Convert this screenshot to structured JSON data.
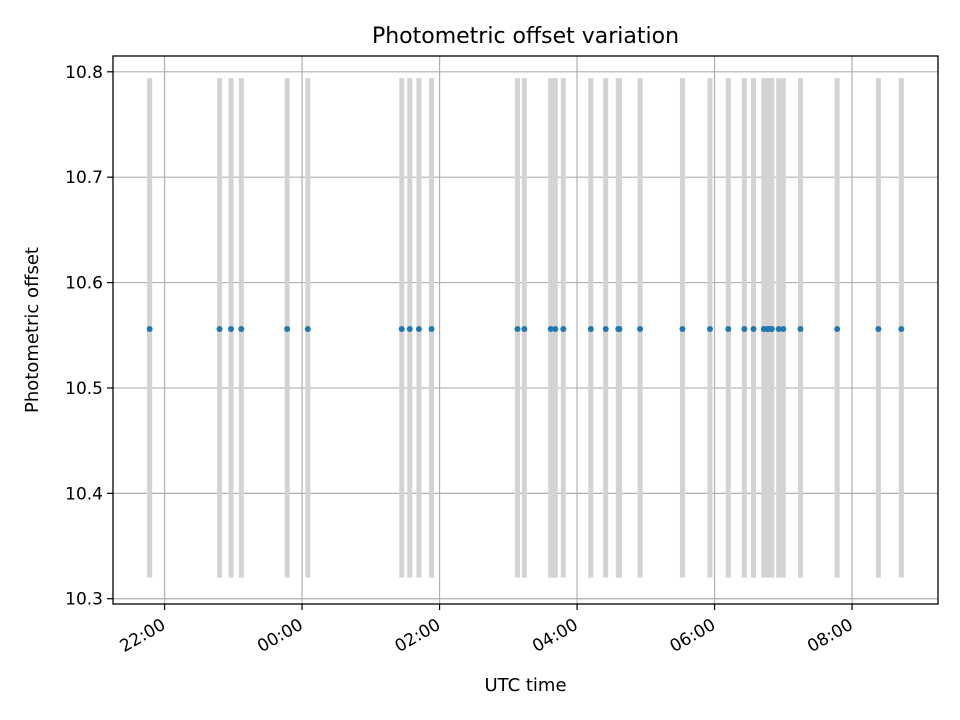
{
  "chart_data": {
    "type": "scatter",
    "title": "Photometric offset variation",
    "xlabel": "UTC time",
    "ylabel": "Photometric offset",
    "x_axis": "time (UTC), spanning the night from the 21:xx hour to the 08:xx hour of the next day",
    "xlim": [
      "21:15",
      "09:15"
    ],
    "x_ticks": [
      "22:00",
      "00:00",
      "02:00",
      "04:00",
      "06:00",
      "08:00"
    ],
    "ylim": [
      10.295,
      10.815
    ],
    "y_ticks": [
      "10.3",
      "10.4",
      "10.5",
      "10.6",
      "10.7",
      "10.8"
    ],
    "grid": true,
    "legend": "none",
    "series": [
      {
        "marker": "point",
        "color": "#1f77b4",
        "x": [
          "21:47",
          "22:48",
          "22:58",
          "23:07",
          "23:47",
          "00:05",
          "01:27",
          "01:34",
          "01:42",
          "01:53",
          "03:08",
          "03:14",
          "03:37",
          "03:41",
          "03:48",
          "04:12",
          "04:25",
          "04:36",
          "04:37",
          "04:55",
          "05:32",
          "05:56",
          "06:12",
          "06:26",
          "06:34",
          "06:43",
          "06:46",
          "06:48",
          "06:50",
          "06:56",
          "07:00",
          "07:15",
          "07:47",
          "08:23",
          "08:43"
        ],
        "y": [
          10.556,
          10.556,
          10.556,
          10.556,
          10.556,
          10.556,
          10.556,
          10.556,
          10.556,
          10.556,
          10.556,
          10.556,
          10.556,
          10.556,
          10.556,
          10.556,
          10.556,
          10.556,
          10.556,
          10.556,
          10.556,
          10.556,
          10.556,
          10.556,
          10.556,
          10.556,
          10.556,
          10.556,
          10.556,
          10.556,
          10.556,
          10.556,
          10.556,
          10.556,
          10.556
        ]
      }
    ],
    "vertical_bands": {
      "color": "#d3d3d3",
      "y_from": 10.32,
      "y_to": 10.794,
      "x": [
        "21:47",
        "22:48",
        "22:58",
        "23:07",
        "23:47",
        "00:05",
        "01:27",
        "01:34",
        "01:42",
        "01:53",
        "03:08",
        "03:14",
        "03:37",
        "03:41",
        "03:48",
        "04:12",
        "04:25",
        "04:36",
        "04:37",
        "04:55",
        "05:32",
        "05:56",
        "06:12",
        "06:26",
        "06:34",
        "06:43",
        "06:46",
        "06:48",
        "06:50",
        "06:56",
        "07:00",
        "07:15",
        "07:47",
        "08:23",
        "08:43"
      ]
    }
  }
}
